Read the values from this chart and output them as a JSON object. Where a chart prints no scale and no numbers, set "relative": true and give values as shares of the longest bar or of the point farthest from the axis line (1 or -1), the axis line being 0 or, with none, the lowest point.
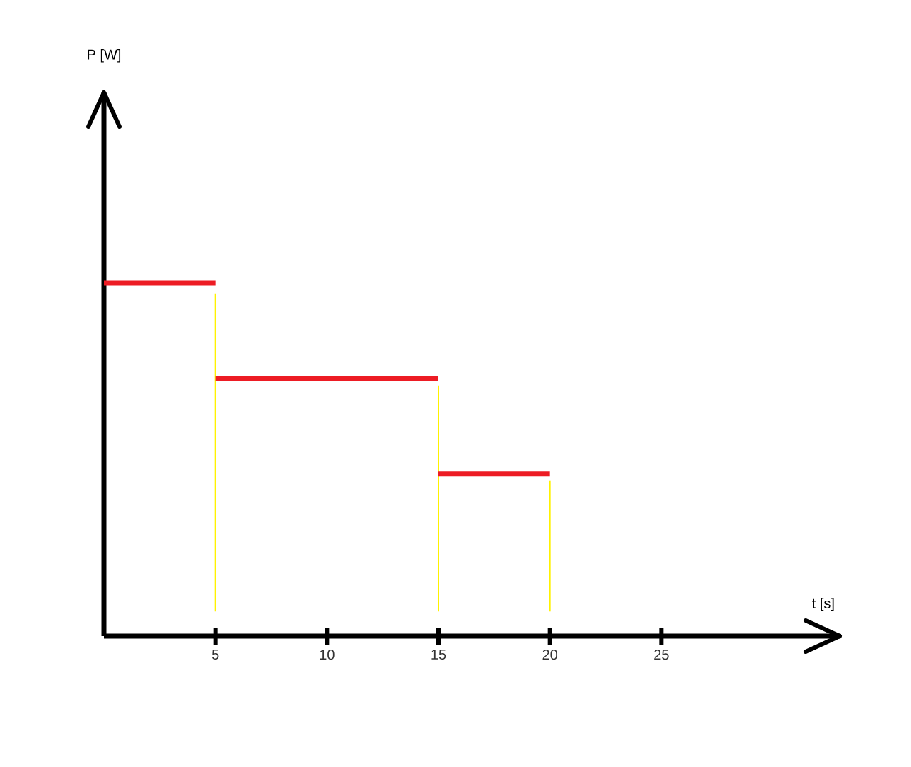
{
  "chart_data": {
    "type": "line",
    "relative": true,
    "xlabel": "t [s]",
    "annotations": [
      "P [W]"
    ],
    "xlim": [
      0,
      33
    ],
    "xticks": [
      5,
      10,
      15,
      20,
      25
    ],
    "series": [
      {
        "color": "#ed1c24",
        "x": [
          0,
          5
        ],
        "values": [
          1,
          1
        ]
      },
      {
        "color": "#ed1c24",
        "x": [
          5,
          15
        ],
        "values": [
          0.73,
          0.73
        ]
      },
      {
        "color": "#ed1c24",
        "x": [
          15,
          20
        ],
        "values": [
          0.46,
          0.46
        ]
      },
      {
        "color": "#fff200",
        "x": [
          5,
          5
        ],
        "values": [
          0.07,
          0.97
        ]
      },
      {
        "color": "#fff200",
        "x": [
          15,
          15
        ],
        "values": [
          0.07,
          0.71
        ]
      },
      {
        "color": "#fff200",
        "x": [
          20,
          20
        ],
        "values": [
          0.07,
          0.44
        ]
      }
    ]
  }
}
